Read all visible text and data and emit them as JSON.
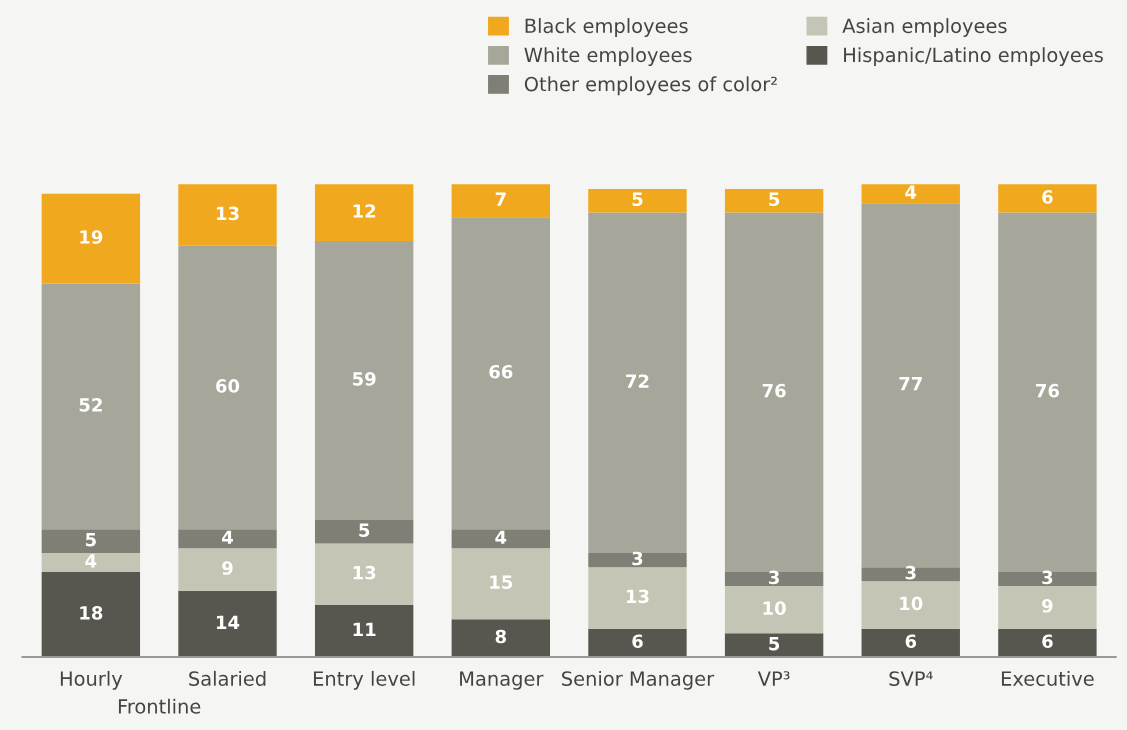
{
  "chart_data": {
    "type": "bar",
    "stacked": true,
    "data_labels": true,
    "legend": "top right",
    "grid": false,
    "categories": [
      "Hourly",
      "Salaried",
      "Entry level",
      "Manager",
      "Senior Manager",
      "VP³",
      "SVP⁴",
      "Executive"
    ],
    "series": [
      {
        "name": "Hispanic/Latino employees",
        "color": "#58574f",
        "values": [
          18,
          14,
          11,
          8,
          6,
          5,
          6,
          6
        ]
      },
      {
        "name": "Asian employees",
        "color": "#c5c5b5",
        "values": [
          4,
          9,
          13,
          15,
          13,
          10,
          10,
          9
        ]
      },
      {
        "name": "Other employees of color²",
        "color": "#7f7f76",
        "values": [
          5,
          4,
          5,
          4,
          3,
          3,
          3,
          3
        ]
      },
      {
        "name": "White employees",
        "color": "#a7a69a",
        "values": [
          52,
          60,
          59,
          66,
          72,
          76,
          77,
          76
        ]
      },
      {
        "name": "Black employees",
        "color": "#f0a81f",
        "values": [
          19,
          13,
          12,
          7,
          5,
          5,
          4,
          6
        ]
      }
    ],
    "annotations": [
      "Frontline"
    ]
  }
}
